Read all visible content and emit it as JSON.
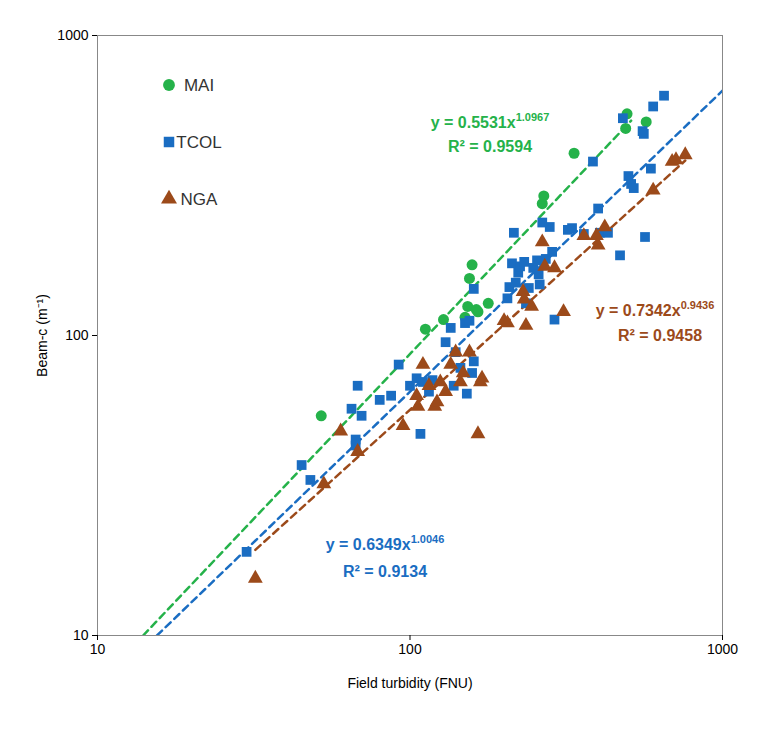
{
  "chart_data": {
    "type": "scatter",
    "log": true,
    "grid": false,
    "legend": "upper left",
    "x_label": "Field turbidity (FNU)",
    "y_label": "Beam-c (m⁻¹)",
    "xlim": [
      10,
      1000
    ],
    "ylim": [
      10,
      1000
    ],
    "xticks": [
      10,
      100,
      1000
    ],
    "yticks": [
      10,
      100,
      1000
    ],
    "series": [
      {
        "name": "MAI",
        "color": "#25b24a",
        "marker": "circle",
        "x": [
          52,
          112,
          128,
          150,
          153,
          155,
          158,
          163,
          165,
          178,
          265,
          268,
          335,
          490,
          495,
          570
        ],
        "values": [
          54,
          105,
          113,
          115,
          125,
          155,
          172,
          122,
          120,
          128,
          275,
          292,
          405,
          490,
          548,
          515
        ],
        "fit": {
          "line_style": "dashed",
          "x": [
            14,
            510
          ],
          "values": [
            10,
            520
          ],
          "equation": "y = 0.5531x",
          "exponent": "1.0967",
          "r_squared": "R² = 0.9594"
        }
      },
      {
        "name": "TCOL",
        "color": "#1a6dc2",
        "marker": "square",
        "x": [
          30,
          45,
          48,
          65,
          67,
          67,
          68,
          70,
          80,
          87,
          92,
          100,
          105,
          108,
          110,
          115,
          118,
          130,
          135,
          138,
          140,
          145,
          150,
          152,
          155,
          158,
          160,
          160,
          205,
          208,
          212,
          215,
          218,
          222,
          225,
          232,
          235,
          240,
          248,
          255,
          258,
          260,
          265,
          272,
          280,
          285,
          290,
          320,
          330,
          360,
          385,
          400,
          405,
          430,
          470,
          480,
          500,
          510,
          520,
          555,
          560,
          565,
          590,
          600,
          650
        ],
        "values": [
          19,
          37,
          33,
          57,
          45,
          43,
          68,
          54,
          61,
          63,
          80,
          68,
          72,
          47,
          70,
          65,
          71,
          95,
          106,
          68,
          88,
          78,
          110,
          64,
          112,
          75,
          82,
          143,
          133,
          145,
          174,
          220,
          150,
          162,
          170,
          176,
          128,
          144,
          168,
          178,
          160,
          148,
          238,
          180,
          230,
          190,
          113,
          225,
          228,
          218,
          380,
          265,
          220,
          220,
          185,
          530,
          340,
          320,
          310,
          480,
          470,
          213,
          360,
          580,
          630
        ],
        "fit": {
          "line_style": "dashed",
          "x": [
            15.5,
            1000
          ],
          "values": [
            10,
            655
          ],
          "equation": "y = 0.6349x",
          "exponent": "1.0046",
          "r_squared": "R² = 0.9134"
        }
      },
      {
        "name": "NGA",
        "color": "#9c4a1a",
        "marker": "triangle",
        "x": [
          32,
          53,
          60,
          68,
          95,
          105,
          106,
          110,
          115,
          120,
          122,
          125,
          130,
          135,
          140,
          145,
          148,
          155,
          165,
          168,
          170,
          200,
          205,
          230,
          232,
          235,
          245,
          265,
          270,
          290,
          310,
          360,
          395,
          400,
          420,
          600,
          690,
          710,
          760
        ],
        "values": [
          15.5,
          32,
          48,
          41,
          50,
          63,
          58,
          80,
          68,
          58,
          60,
          70,
          65,
          80,
          88,
          70,
          75,
          88,
          47,
          70,
          72,
          112,
          110,
          140,
          132,
          108,
          125,
          205,
          170,
          168,
          120,
          215,
          215,
          200,
          230,
          305,
          380,
          385,
          400
        ],
        "fit": {
          "line_style": "dashed",
          "x": [
            32,
            760
          ],
          "values": [
            19.3,
            383
          ],
          "equation": "y = 0.7342x",
          "exponent": "0.9436",
          "r_squared": "R² = 0.9458"
        }
      }
    ]
  }
}
